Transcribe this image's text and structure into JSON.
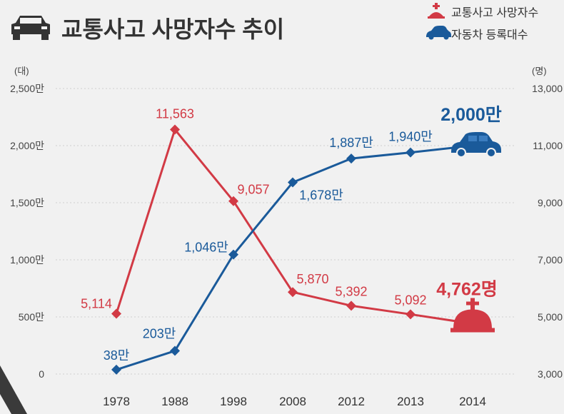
{
  "header": {
    "title": "교통사고 사망자수 추이",
    "icon": "car-icon"
  },
  "legend": [
    {
      "label": "교통사고 사망자수",
      "icon": "dome-cross-icon",
      "color": "#d23a45"
    },
    {
      "label": "자동차 등록대수",
      "icon": "car-icon",
      "color": "#1a5a9a"
    }
  ],
  "chart_data": {
    "type": "line",
    "categories": [
      "1978",
      "1988",
      "1998",
      "2008",
      "2012",
      "2013",
      "2014"
    ],
    "left_axis": {
      "unit": "(대)",
      "ylim": [
        0,
        25000000
      ],
      "ticks": [
        {
          "value": 0,
          "label": "0"
        },
        {
          "value": 5000000,
          "label": "500만"
        },
        {
          "value": 10000000,
          "label": "1,000만"
        },
        {
          "value": 15000000,
          "label": "1,500만"
        },
        {
          "value": 20000000,
          "label": "2,000만"
        },
        {
          "value": 25000000,
          "label": "2,500만"
        }
      ]
    },
    "right_axis": {
      "unit": "(명)",
      "ylim": [
        3000,
        13000
      ],
      "ticks": [
        {
          "value": 3000,
          "label": "3,000"
        },
        {
          "value": 5000,
          "label": "5,000"
        },
        {
          "value": 7000,
          "label": "7,000"
        },
        {
          "value": 9000,
          "label": "9,000"
        },
        {
          "value": 11000,
          "label": "11,000"
        },
        {
          "value": 13000,
          "label": "13,000"
        }
      ]
    },
    "series": [
      {
        "name": "교통사고 사망자수",
        "axis": "right",
        "color": "#d23a45",
        "values": [
          5114,
          11563,
          9057,
          5870,
          5392,
          5092,
          4762
        ],
        "labels": [
          "5,114",
          "11,563",
          "9,057",
          "5,870",
          "5,392",
          "5,092",
          "4,762명"
        ]
      },
      {
        "name": "자동차 등록대수",
        "axis": "left",
        "color": "#1a5a9a",
        "values": [
          380000,
          2030000,
          10460000,
          16780000,
          18870000,
          19400000,
          20000000
        ],
        "labels": [
          "38만",
          "203만",
          "1,046만",
          "1,678만",
          "1,887만",
          "1,940만",
          "2,000만"
        ]
      }
    ],
    "grid": true
  }
}
